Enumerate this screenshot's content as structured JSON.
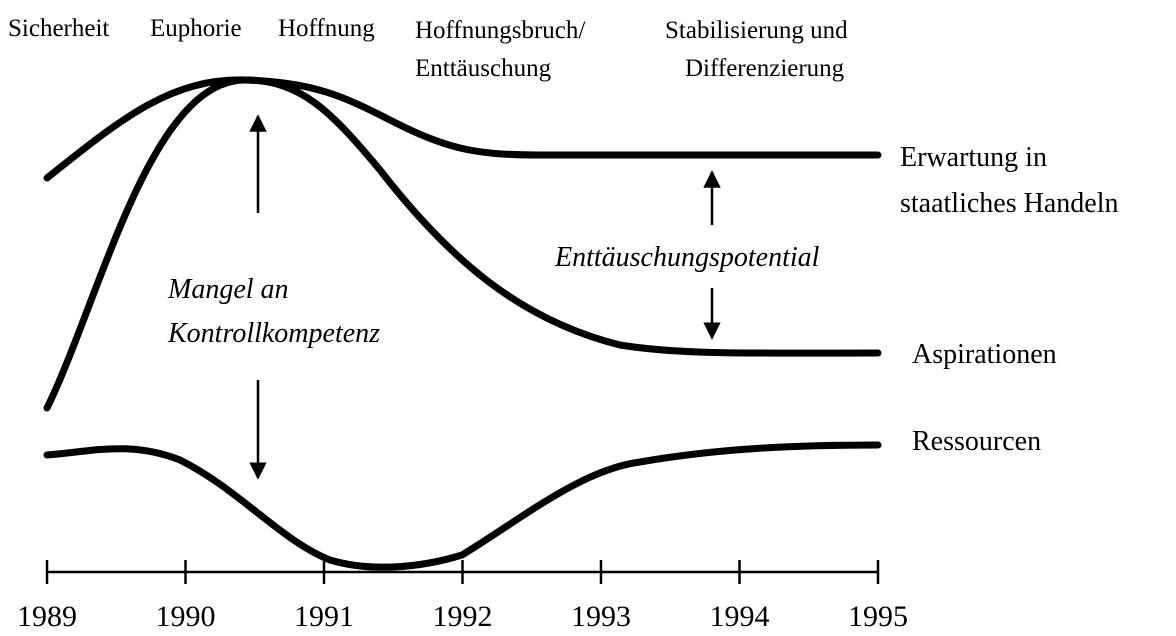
{
  "phases": [
    "Sicherheit",
    "Euphorie",
    "Hoffnung",
    [
      "Hoffnungsbruch/",
      "Enttäuschung"
    ],
    [
      "Stabilisierung und",
      "Differenzierung"
    ]
  ],
  "curves": {
    "expectation": [
      "Erwartung in",
      "staatliches Handeln"
    ],
    "aspirations": "Aspirationen",
    "resources": "Ressourcen"
  },
  "annotations": {
    "disappointment": "Enttäuschungspotential",
    "control": [
      "Mangel an",
      "Kontrollkompetenz"
    ]
  },
  "axis": {
    "ticks": [
      "1989",
      "1990",
      "1991",
      "1992",
      "1993",
      "1994",
      "1995"
    ]
  }
}
